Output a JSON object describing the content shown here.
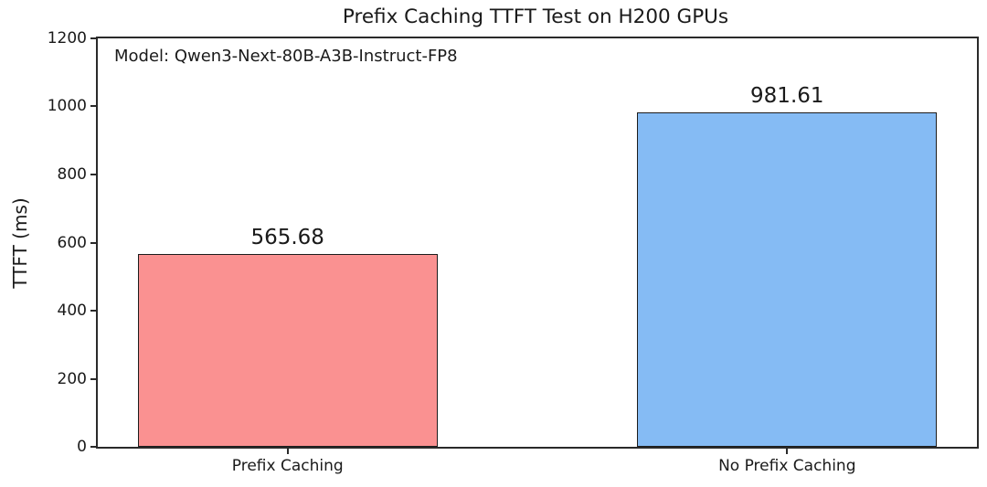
{
  "figure": {
    "background": "#ffffff",
    "text_color": "#1a1a1a",
    "axis_color": "#2a2a2a"
  },
  "chart_data": {
    "type": "bar",
    "title": "Prefix Caching TTFT Test on H200 GPUs",
    "annotation": "Model: Qwen3-Next-80B-A3B-Instruct-FP8",
    "categories": [
      "Prefix Caching",
      "No Prefix Caching"
    ],
    "values": [
      565.68,
      981.61
    ],
    "value_labels": [
      "565.68",
      "981.61"
    ],
    "bar_colors": [
      "#fa9191",
      "#85bbf4"
    ],
    "bar_edge_color": "#1c1c1c",
    "xlabel": "",
    "ylabel": "TTFT (ms)",
    "ylim": [
      0,
      1200
    ],
    "yticks": [
      0,
      200,
      400,
      600,
      800,
      1000,
      1200
    ],
    "grid": false,
    "legend_position": "none"
  }
}
